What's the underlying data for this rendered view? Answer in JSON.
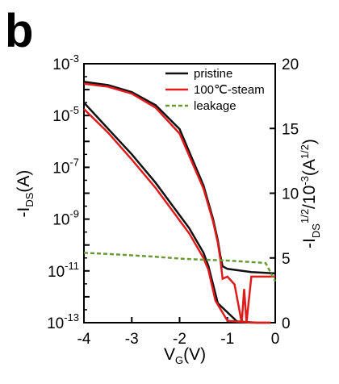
{
  "chart_data": {
    "type": "line",
    "panel_label": "b",
    "xlabel": {
      "main": "V",
      "sub": "G",
      "tail": "(V)"
    },
    "ylabel_left": {
      "pre": "-I",
      "sub": "DS",
      "tail": "(A)"
    },
    "ylabel_right": {
      "pre": "-I",
      "sub": "DS",
      "sup": "1/2",
      "tail": "/10",
      "sup2": "-3",
      "tail2": "(A",
      "sup3": "1/2",
      "end": ")"
    },
    "xlim": [
      -4,
      0
    ],
    "ylim_left": [
      1e-13,
      0.001
    ],
    "ylim_right": [
      0,
      20
    ],
    "left_scale": "log",
    "xticks": [
      -4,
      -3,
      -2,
      -1,
      0
    ],
    "xtick_labels": [
      "-4",
      "-3",
      "-2",
      "-1",
      "0"
    ],
    "yticks_left": [
      {
        "base": "10",
        "exp": "-3"
      },
      {
        "base": "10",
        "exp": "-5"
      },
      {
        "base": "10",
        "exp": "-7"
      },
      {
        "base": "10",
        "exp": "-9"
      },
      {
        "base": "10",
        "exp": "-11"
      },
      {
        "base": "10",
        "exp": "-13"
      }
    ],
    "yticks_left_values": [
      -3,
      -5,
      -7,
      -9,
      -11,
      -13
    ],
    "yticks_right": [
      "20",
      "15",
      "10",
      "5",
      "0"
    ],
    "yticks_right_values": [
      20,
      15,
      10,
      5,
      0
    ],
    "legend_position": "top-right",
    "series": [
      {
        "name": "pristine",
        "color": "#111111",
        "style": "solid",
        "log_current": {
          "x": [
            -4.0,
            -3.5,
            -3.0,
            -2.5,
            -2.0,
            -1.5,
            -1.3,
            -1.2,
            -1.15,
            -1.1,
            -1.0,
            -0.5,
            0.0
          ],
          "y": [
            0.0002,
            0.00015,
            8e-05,
            2.5e-05,
            3e-06,
            2e-08,
            1e-09,
            1.5e-10,
            4e-11,
            1.5e-11,
            1.2e-11,
            9e-12,
            8e-12
          ]
        },
        "sqrt_current": {
          "x": [
            -4.0,
            -3.5,
            -3.0,
            -2.5,
            -2.0,
            -1.8,
            -1.5,
            -1.4,
            -1.2,
            -0.8,
            -0.4,
            -0.2,
            -0.1
          ],
          "y": [
            17.0,
            15.0,
            13.0,
            10.8,
            8.3,
            7.3,
            5.4,
            4.4,
            1.5,
            0.1,
            0.0,
            0.0,
            0.0
          ]
        }
      },
      {
        "name": "100℃-steam",
        "color": "#e01b1b",
        "style": "solid",
        "log_current": {
          "x": [
            -4.0,
            -3.5,
            -3.0,
            -2.5,
            -2.0,
            -1.5,
            -1.3,
            -1.2,
            -1.15,
            -1.1,
            -1.0,
            -0.85,
            -0.7,
            -0.65,
            -0.6,
            -0.5,
            -0.3,
            -0.1,
            0.0
          ],
          "y": [
            0.00017,
            0.00013,
            7e-05,
            2e-05,
            2e-06,
            1.5e-08,
            8e-10,
            1.2e-10,
            3e-11,
            5e-12,
            6e-12,
            3e-12,
            1e-13,
            2e-12,
            1e-13,
            6e-12,
            6e-12,
            6e-12,
            6e-12
          ]
        },
        "sqrt_current": {
          "x": [
            -4.0,
            -3.5,
            -3.0,
            -2.5,
            -2.0,
            -1.8,
            -1.5,
            -1.4,
            -1.25,
            -1.0,
            -0.5,
            -0.2,
            -0.1
          ],
          "y": [
            16.5,
            14.7,
            12.6,
            10.4,
            7.9,
            6.9,
            5.0,
            4.1,
            1.7,
            0.15,
            0.0,
            0.0,
            0.0
          ]
        }
      },
      {
        "name": "leakage",
        "color": "#6b9a35",
        "style": "dashed",
        "log_current": {
          "x": [
            -4.0,
            -3.5,
            -3.0,
            -2.5,
            -2.0,
            -1.5,
            -1.0,
            -0.5,
            -0.2,
            0.0
          ],
          "y": [
            5e-11,
            4.5e-11,
            4e-11,
            3.5e-11,
            3e-11,
            2.7e-11,
            2.5e-11,
            2.2e-11,
            2e-11,
            4e-12
          ]
        }
      }
    ]
  }
}
